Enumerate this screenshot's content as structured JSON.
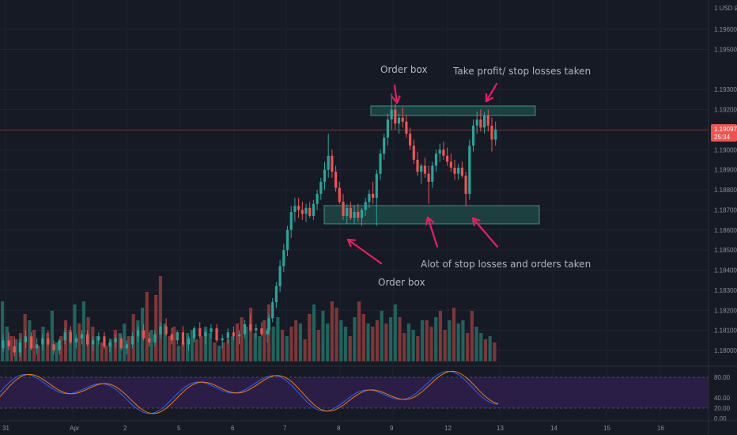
{
  "chart_data": {
    "type": "candlestick",
    "currency": "USD",
    "price_scale": {
      "min": 1.1796,
      "max": 1.2005,
      "ticks": [
        "1.19600",
        "1.19500",
        "1.19300",
        "1.19200",
        "1.19100",
        "1.19000",
        "1.18900",
        "1.18800",
        "1.18700",
        "1.18600",
        "1.18500",
        "1.18400",
        "1.18300",
        "1.18200",
        "1.18100",
        "1.18000"
      ],
      "current_price": "1.19097",
      "countdown": "25:34"
    },
    "time_axis": {
      "labels": [
        "31",
        "Apr",
        "2",
        "5",
        "6",
        "7",
        "8",
        "9",
        "12",
        "13",
        "14",
        "15",
        "16"
      ]
    },
    "candles": [
      [
        1.1801,
        1.1808,
        1.1799,
        1.1805
      ],
      [
        1.1805,
        1.1809,
        1.18,
        1.1802
      ],
      [
        1.1802,
        1.1807,
        1.1797,
        1.1799
      ],
      [
        1.1799,
        1.1806,
        1.1797,
        1.1804
      ],
      [
        1.1804,
        1.181,
        1.1801,
        1.1807
      ],
      [
        1.1807,
        1.1809,
        1.18,
        1.1801
      ],
      [
        1.1801,
        1.1806,
        1.1798,
        1.1803
      ],
      [
        1.1803,
        1.1808,
        1.18,
        1.1806
      ],
      [
        1.1806,
        1.181,
        1.1802,
        1.1803
      ],
      [
        1.1803,
        1.1805,
        1.1798,
        1.18
      ],
      [
        1.18,
        1.1806,
        1.1798,
        1.1805
      ],
      [
        1.1805,
        1.1811,
        1.1803,
        1.1809
      ],
      [
        1.1809,
        1.1812,
        1.1803,
        1.1804
      ],
      [
        1.1804,
        1.1808,
        1.1801,
        1.1806
      ],
      [
        1.1806,
        1.181,
        1.1803,
        1.1808
      ],
      [
        1.1808,
        1.181,
        1.1802,
        1.1803
      ],
      [
        1.1803,
        1.1807,
        1.18,
        1.1805
      ],
      [
        1.1805,
        1.1809,
        1.1803,
        1.1807
      ],
      [
        1.1807,
        1.1809,
        1.1801,
        1.1802
      ],
      [
        1.1802,
        1.1806,
        1.1799,
        1.1804
      ],
      [
        1.1804,
        1.1808,
        1.1801,
        1.1806
      ],
      [
        1.1806,
        1.1808,
        1.18,
        1.1801
      ],
      [
        1.1801,
        1.1805,
        1.1798,
        1.1803
      ],
      [
        1.1803,
        1.1809,
        1.1801,
        1.1807
      ],
      [
        1.1807,
        1.1812,
        1.1804,
        1.181
      ],
      [
        1.181,
        1.1813,
        1.1805,
        1.1806
      ],
      [
        1.1806,
        1.1809,
        1.1802,
        1.1804
      ],
      [
        1.1804,
        1.181,
        1.1802,
        1.1808
      ],
      [
        1.1808,
        1.1814,
        1.1806,
        1.1812
      ],
      [
        1.1812,
        1.1816,
        1.1807,
        1.1808
      ],
      [
        1.1808,
        1.1811,
        1.1803,
        1.1805
      ],
      [
        1.1805,
        1.181,
        1.1803,
        1.1809
      ],
      [
        1.1809,
        1.1812,
        1.1802,
        1.1803
      ],
      [
        1.1803,
        1.1807,
        1.18,
        1.1806
      ],
      [
        1.1806,
        1.1812,
        1.1804,
        1.1811
      ],
      [
        1.1811,
        1.1814,
        1.1806,
        1.1807
      ],
      [
        1.1807,
        1.181,
        1.1803,
        1.1809
      ],
      [
        1.1809,
        1.1813,
        1.1806,
        1.1811
      ],
      [
        1.1811,
        1.1813,
        1.1804,
        1.1805
      ],
      [
        1.1805,
        1.1808,
        1.1801,
        1.1806
      ],
      [
        1.1806,
        1.1811,
        1.1803,
        1.1809
      ],
      [
        1.1809,
        1.1812,
        1.1805,
        1.1807
      ],
      [
        1.1807,
        1.181,
        1.1803,
        1.1808
      ],
      [
        1.1808,
        1.1815,
        1.1806,
        1.1813
      ],
      [
        1.1813,
        1.1818,
        1.1809,
        1.181
      ],
      [
        1.181,
        1.1813,
        1.1806,
        1.1811
      ],
      [
        1.1811,
        1.1814,
        1.1807,
        1.1808
      ],
      [
        1.1808,
        1.1811,
        1.1804,
        1.181
      ],
      [
        1.181,
        1.1818,
        1.1808,
        1.1816
      ],
      [
        1.1816,
        1.1826,
        1.1814,
        1.1824
      ],
      [
        1.1824,
        1.1834,
        1.1821,
        1.1832
      ],
      [
        1.1832,
        1.1845,
        1.1829,
        1.1842
      ],
      [
        1.1842,
        1.1853,
        1.1839,
        1.185
      ],
      [
        1.185,
        1.1862,
        1.1847,
        1.186
      ],
      [
        1.186,
        1.1872,
        1.1856,
        1.1869
      ],
      [
        1.1869,
        1.1876,
        1.1864,
        1.1872
      ],
      [
        1.1872,
        1.1876,
        1.1866,
        1.187
      ],
      [
        1.187,
        1.1874,
        1.1865,
        1.1868
      ],
      [
        1.1868,
        1.1873,
        1.1864,
        1.1871
      ],
      [
        1.1871,
        1.1874,
        1.1866,
        1.1867
      ],
      [
        1.1867,
        1.1875,
        1.1865,
        1.1873
      ],
      [
        1.1873,
        1.188,
        1.187,
        1.1878
      ],
      [
        1.1878,
        1.1886,
        1.1875,
        1.1884
      ],
      [
        1.1884,
        1.1894,
        1.188,
        1.189
      ],
      [
        1.189,
        1.1908,
        1.1886,
        1.1897
      ],
      [
        1.1897,
        1.19,
        1.1886,
        1.1889
      ],
      [
        1.1889,
        1.1892,
        1.1879,
        1.1881
      ],
      [
        1.1881,
        1.1884,
        1.1873,
        1.1874
      ],
      [
        1.1874,
        1.1878,
        1.1865,
        1.1867
      ],
      [
        1.1867,
        1.1873,
        1.1863,
        1.1871
      ],
      [
        1.1871,
        1.1874,
        1.1865,
        1.1866
      ],
      [
        1.1866,
        1.1872,
        1.1863,
        1.1869
      ],
      [
        1.1869,
        1.1873,
        1.1864,
        1.1866
      ],
      [
        1.1866,
        1.1871,
        1.1862,
        1.187
      ],
      [
        1.187,
        1.1876,
        1.1867,
        1.1874
      ],
      [
        1.1874,
        1.188,
        1.1871,
        1.1878
      ],
      [
        1.1878,
        1.1884,
        1.1873,
        1.1876
      ],
      [
        1.1876,
        1.189,
        1.1862,
        1.1888
      ],
      [
        1.1888,
        1.19,
        1.1885,
        1.1898
      ],
      [
        1.1898,
        1.1908,
        1.1895,
        1.1906
      ],
      [
        1.1906,
        1.1918,
        1.1902,
        1.1915
      ],
      [
        1.1915,
        1.1928,
        1.191,
        1.192
      ],
      [
        1.192,
        1.1923,
        1.191,
        1.1913
      ],
      [
        1.1913,
        1.1918,
        1.1908,
        1.1916
      ],
      [
        1.1916,
        1.1921,
        1.1911,
        1.1914
      ],
      [
        1.1914,
        1.1917,
        1.1906,
        1.1908
      ],
      [
        1.1908,
        1.1911,
        1.19,
        1.1902
      ],
      [
        1.1902,
        1.1905,
        1.1893,
        1.1895
      ],
      [
        1.1895,
        1.1899,
        1.1887,
        1.1889
      ],
      [
        1.1889,
        1.1893,
        1.1883,
        1.1892
      ],
      [
        1.1892,
        1.1896,
        1.1886,
        1.1888
      ],
      [
        1.1888,
        1.1892,
        1.1873,
        1.1884
      ],
      [
        1.1884,
        1.1894,
        1.1881,
        1.1892
      ],
      [
        1.1892,
        1.19,
        1.1889,
        1.1898
      ],
      [
        1.1898,
        1.1903,
        1.1894,
        1.19
      ],
      [
        1.19,
        1.1904,
        1.1895,
        1.1897
      ],
      [
        1.1897,
        1.1901,
        1.1892,
        1.1894
      ],
      [
        1.1894,
        1.1898,
        1.1889,
        1.1891
      ],
      [
        1.1891,
        1.1895,
        1.1885,
        1.1888
      ],
      [
        1.1888,
        1.1893,
        1.1885,
        1.1891
      ],
      [
        1.1891,
        1.1894,
        1.1886,
        1.1887
      ],
      [
        1.1887,
        1.1889,
        1.1872,
        1.1878
      ],
      [
        1.1878,
        1.1905,
        1.1875,
        1.1902
      ],
      [
        1.1902,
        1.1915,
        1.1899,
        1.1912
      ],
      [
        1.1912,
        1.1919,
        1.1908,
        1.1915
      ],
      [
        1.1915,
        1.192,
        1.1909,
        1.1911
      ],
      [
        1.1911,
        1.1919,
        1.1908,
        1.1917
      ],
      [
        1.1917,
        1.192,
        1.1909,
        1.1912
      ],
      [
        1.1912,
        1.1916,
        1.1899,
        1.1905
      ],
      [
        1.1905,
        1.1914,
        1.1902,
        1.191
      ]
    ],
    "volume": [
      38,
      22,
      16,
      14,
      18,
      30,
      26,
      20,
      10,
      22,
      18,
      32,
      12,
      16,
      26,
      20,
      36,
      24,
      38,
      28,
      22,
      16,
      12,
      10,
      14,
      20,
      18,
      24,
      16,
      30,
      26,
      34,
      44,
      20,
      42,
      54,
      24,
      16,
      22,
      10,
      12,
      18,
      20,
      14,
      16,
      22,
      18,
      12,
      10,
      12,
      14,
      16,
      24,
      28,
      22,
      34,
      18,
      16,
      26,
      36,
      22,
      28,
      20,
      16,
      22,
      26,
      24,
      14,
      30,
      36,
      20,
      32,
      24,
      38,
      34,
      26,
      22,
      16,
      28,
      38,
      30,
      24,
      22,
      26,
      32,
      24,
      28,
      36,
      28,
      18,
      24,
      20,
      16,
      26,
      26,
      22,
      28,
      32,
      20,
      26,
      34,
      24,
      26,
      18,
      32,
      22,
      18,
      14,
      16,
      12
    ],
    "volume_colors": {
      "up": "#1f6d64",
      "down": "#8a3a3a"
    },
    "oscillator": {
      "ticks": [
        "80.00",
        "40.00",
        "20.00",
        "0.00"
      ],
      "upper": 80,
      "lower": 20
    },
    "boxes": [
      {
        "top": 1.1922,
        "bottom": 1.1916,
        "x0": 67,
        "x1": 107
      },
      {
        "top": 1.1872,
        "bottom": 1.1863,
        "x0": 58,
        "x1": 108
      }
    ],
    "annotations": [
      {
        "id": "top-left-label",
        "text": "Order box"
      },
      {
        "id": "top-right-label",
        "text": "Take profit/ stop losses taken"
      },
      {
        "id": "bottom-right-label",
        "text": "Alot of stop losses and orders taken"
      },
      {
        "id": "bottom-left-label",
        "text": "Order box"
      }
    ],
    "colors": {
      "up": "#26a69a",
      "down": "#ef5350",
      "annotation": "#e91e63",
      "box_fill": "#1e4d4a",
      "box_stroke": "#4db6ac",
      "osc_band": "#2c1f4a",
      "k_line": "#2962ff",
      "d_line": "#f57c00",
      "price_tag": "#ef5350"
    }
  }
}
